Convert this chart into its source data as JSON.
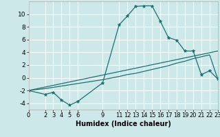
{
  "xlabel": "Humidex (Indice chaleur)",
  "background_color": "#cde8e8",
  "grid_color": "#ffffff",
  "line_color": "#1a7070",
  "xlim": [
    0,
    23
  ],
  "ylim": [
    -5,
    12
  ],
  "xticks": [
    0,
    2,
    3,
    4,
    5,
    6,
    9,
    11,
    12,
    13,
    14,
    15,
    16,
    17,
    18,
    19,
    20,
    21,
    22,
    23
  ],
  "yticks": [
    -4,
    -2,
    0,
    2,
    4,
    6,
    8,
    10
  ],
  "line1_x": [
    0,
    2,
    3,
    4,
    5,
    6,
    9,
    11,
    12,
    13,
    14,
    15,
    16,
    17,
    18,
    19,
    20,
    21,
    22,
    23
  ],
  "line1_y": [
    -2,
    -2.6,
    -2.3,
    -3.5,
    -4.3,
    -3.7,
    -0.8,
    8.3,
    9.7,
    11.2,
    11.3,
    11.3,
    8.9,
    6.3,
    5.9,
    4.2,
    4.2,
    0.5,
    1.1,
    -0.2
  ],
  "line2_x": [
    0,
    23
  ],
  "line2_y": [
    -2,
    4.2
  ],
  "line3_x": [
    0,
    2,
    3,
    4,
    5,
    6,
    9,
    11,
    12,
    13,
    14,
    15,
    16,
    17,
    18,
    19,
    20,
    21,
    22,
    23
  ],
  "line3_y": [
    -2,
    -1.7,
    -1.5,
    -1.3,
    -1.1,
    -0.9,
    -0.3,
    0.2,
    0.5,
    0.7,
    1.0,
    1.3,
    1.6,
    1.9,
    2.3,
    2.6,
    3.0,
    3.3,
    3.6,
    -0.2
  ]
}
